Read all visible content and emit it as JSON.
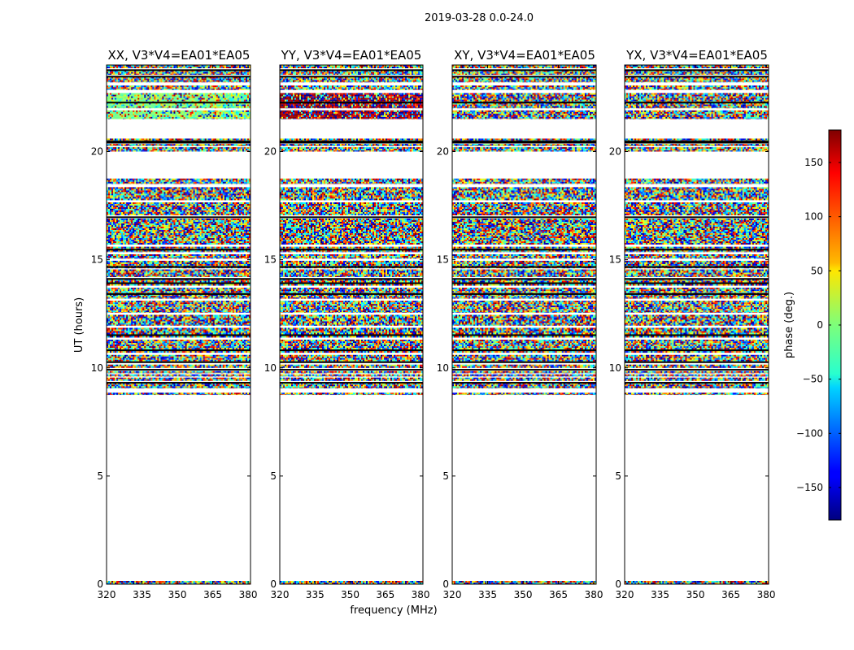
{
  "figure": {
    "suptitle": "2019-03-28 0.0-24.0"
  },
  "chart_data": [
    {
      "type": "heatmap",
      "title": "XX, V3*V4=EA01*EA05",
      "xlabel": "",
      "ylabel": "UT (hours)",
      "xlim": [
        320,
        381
      ],
      "ylim": [
        0,
        24
      ],
      "xticks": [
        320,
        335,
        350,
        365,
        380
      ],
      "yticks": [
        0,
        5,
        10,
        15,
        20
      ],
      "z": "phase (deg.)",
      "phase_bias": [
        {
          "hours": [
            21.5,
            22.7
          ],
          "phase": 0
        },
        {
          "hours": [
            15.9,
            16.9
          ],
          "phase": 10
        }
      ]
    },
    {
      "type": "heatmap",
      "title": "YY, V3*V4=EA01*EA05",
      "xlabel": "frequency (MHz)",
      "ylabel": "",
      "xlim": [
        320,
        381
      ],
      "ylim": [
        0,
        24
      ],
      "xticks": [
        320,
        335,
        350,
        365,
        380
      ],
      "yticks": [
        0,
        5,
        10,
        15,
        20
      ],
      "z": "phase (deg.)",
      "phase_bias": [
        {
          "hours": [
            21.5,
            22.7
          ],
          "phase": 170
        },
        {
          "hours": [
            15.9,
            16.9
          ],
          "phase": -165
        }
      ]
    },
    {
      "type": "heatmap",
      "title": "XY, V3*V4=EA01*EA05",
      "xlabel": "",
      "ylabel": "",
      "xlim": [
        320,
        381
      ],
      "ylim": [
        0,
        24
      ],
      "xticks": [
        320,
        335,
        350,
        365,
        380
      ],
      "yticks": [
        0,
        5,
        10,
        15,
        20
      ],
      "z": "phase (deg.)",
      "phase_bias": []
    },
    {
      "type": "heatmap",
      "title": "YX, V3*V4=EA01*EA05",
      "xlabel": "",
      "ylabel": "",
      "xlim": [
        320,
        381
      ],
      "ylim": [
        0,
        24
      ],
      "xticks": [
        320,
        335,
        350,
        365,
        380
      ],
      "yticks": [
        0,
        5,
        10,
        15,
        20
      ],
      "z": "phase (deg.)",
      "phase_bias": []
    }
  ],
  "colorbar": {
    "label": "phase (deg.)",
    "range": [
      -180,
      180
    ],
    "ticks": [
      150,
      100,
      50,
      0,
      -50,
      -100,
      -150
    ],
    "tick_labels": [
      "150",
      "100",
      "50",
      "0",
      "−50",
      "−100",
      "−150"
    ],
    "colormap": "jet"
  },
  "data_rows_hours": [
    [
      0.0,
      0.15
    ],
    [
      8.75,
      8.85
    ],
    [
      9.05,
      9.3
    ],
    [
      9.4,
      9.55
    ],
    [
      9.6,
      9.7
    ],
    [
      9.75,
      9.85
    ],
    [
      10.0,
      10.15
    ],
    [
      10.25,
      10.6
    ],
    [
      10.7,
      11.3
    ],
    [
      11.4,
      11.85
    ],
    [
      11.95,
      12.45
    ],
    [
      12.55,
      13.1
    ],
    [
      13.2,
      13.7
    ],
    [
      13.8,
      14.1
    ],
    [
      14.2,
      14.55
    ],
    [
      14.6,
      14.95
    ],
    [
      15.05,
      15.25
    ],
    [
      15.35,
      15.6
    ],
    [
      15.7,
      16.9
    ],
    [
      17.05,
      17.65
    ],
    [
      17.75,
      18.35
    ],
    [
      18.5,
      18.75
    ],
    [
      20.0,
      20.2
    ],
    [
      20.25,
      20.35
    ],
    [
      20.45,
      20.6
    ],
    [
      21.5,
      21.9
    ],
    [
      22.0,
      22.7
    ],
    [
      22.85,
      23.05
    ],
    [
      23.2,
      23.45
    ],
    [
      23.55,
      23.75
    ],
    [
      23.85,
      24.0
    ]
  ],
  "solid_lines_hours": [
    20.5,
    20.45,
    15.5,
    14.7,
    14.15,
    13.95,
    13.45,
    11.55,
    10.85,
    10.3,
    23.8,
    23.5,
    22.3,
    17.0,
    9.95,
    9.35
  ]
}
